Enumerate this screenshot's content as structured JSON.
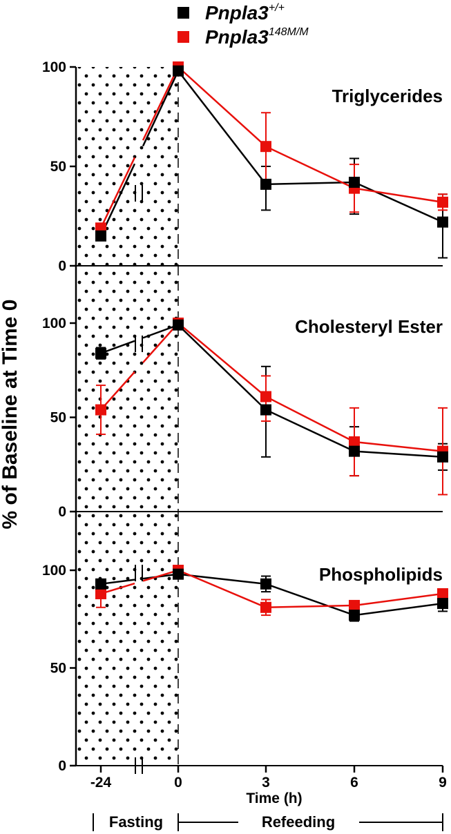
{
  "legend": {
    "wt_name": "Pnpla3",
    "wt_sup": "+/+",
    "mut_name": "Pnpla3",
    "mut_sup": "148M/M"
  },
  "phases": {
    "fasting": "Fasting",
    "refeeding": "Refeeding"
  },
  "colors": {
    "wt": "#000000",
    "mut": "#e8100b"
  },
  "chart_data": [
    {
      "type": "line",
      "title": "Triglycerides",
      "ylabel": "% of Baseline at Time 0",
      "xlabel": "Time (h)",
      "x": [
        -24,
        0,
        3,
        6,
        9
      ],
      "x_tick_labels": [
        "-24",
        "0",
        "3",
        "6",
        "9"
      ],
      "y_ticks": [
        "0",
        "50",
        "100"
      ],
      "ylim": [
        0,
        100
      ],
      "series": [
        {
          "name": "Pnpla3+/+",
          "values": [
            15,
            98,
            41,
            42,
            22
          ],
          "err_upper": [
            2,
            0,
            9,
            12,
            14
          ],
          "err_lower": [
            2,
            0,
            13,
            16,
            18
          ]
        },
        {
          "name": "Pnpla3148M/M",
          "values": [
            19,
            100,
            60,
            39,
            32
          ],
          "err_upper": [
            2,
            0,
            17,
            12,
            4
          ],
          "err_lower": [
            2,
            0,
            17,
            12,
            4
          ]
        }
      ]
    },
    {
      "type": "line",
      "title": "Cholesteryl Ester",
      "ylabel": "% of Baseline at Time 0",
      "xlabel": "Time (h)",
      "x": [
        -24,
        0,
        3,
        6,
        9
      ],
      "x_tick_labels": [
        "-24",
        "0",
        "3",
        "6",
        "9"
      ],
      "y_ticks": [
        "0",
        "50",
        "100"
      ],
      "ylim": [
        0,
        100
      ],
      "series": [
        {
          "name": "Pnpla3+/+",
          "values": [
            84,
            99,
            54,
            32,
            29
          ],
          "err_upper": [
            3,
            0,
            23,
            13,
            7
          ],
          "err_lower": [
            3,
            0,
            25,
            13,
            7
          ]
        },
        {
          "name": "Pnpla3148M/M",
          "values": [
            54,
            100,
            61,
            37,
            32
          ],
          "err_upper": [
            13,
            0,
            11,
            18,
            23
          ],
          "err_lower": [
            13,
            0,
            13,
            18,
            23
          ]
        }
      ]
    },
    {
      "type": "line",
      "title": "Phospholipids",
      "ylabel": "% of Baseline at Time 0",
      "xlabel": "Time (h)",
      "x": [
        -24,
        0,
        3,
        6,
        9
      ],
      "x_tick_labels": [
        "-24",
        "0",
        "3",
        "6",
        "9"
      ],
      "y_ticks": [
        "0",
        "50",
        "100"
      ],
      "ylim": [
        0,
        100
      ],
      "series": [
        {
          "name": "Pnpla3+/+",
          "values": [
            93,
            98,
            93,
            77,
            83
          ],
          "err_upper": [
            2,
            0,
            4,
            2,
            3
          ],
          "err_lower": [
            2,
            0,
            4,
            3,
            4
          ]
        },
        {
          "name": "Pnpla3148M/M",
          "values": [
            88,
            100,
            81,
            82,
            88
          ],
          "err_upper": [
            7,
            0,
            4,
            2,
            2
          ],
          "err_lower": [
            7,
            0,
            4,
            2,
            2
          ]
        }
      ]
    }
  ]
}
